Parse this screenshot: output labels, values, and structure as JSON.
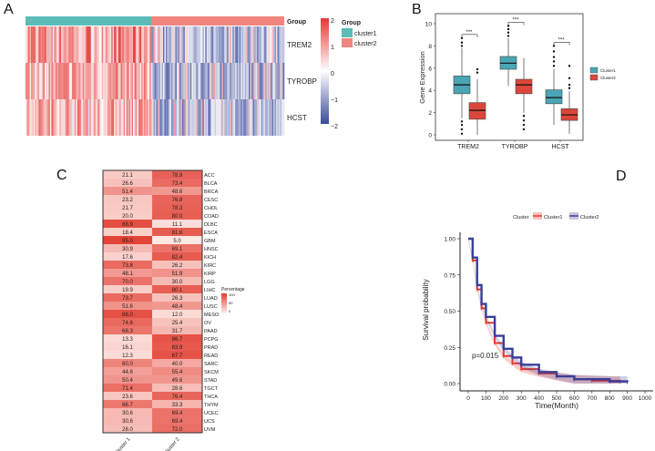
{
  "panel_labels": [
    "A",
    "B",
    "C",
    "D"
  ],
  "chart_data": [
    {
      "panel": "A",
      "type": "heatmap",
      "rows": [
        "TREM2",
        "TYROBP",
        "HCST"
      ],
      "annotation_title": "Group",
      "groups": [
        {
          "name": "cluster1",
          "color": "#5bbcb8"
        },
        {
          "name": "cluster2",
          "color": "#f08580"
        }
      ],
      "scale_ticks": [
        "2",
        "1",
        "0",
        "−1",
        "−2"
      ],
      "scale_range": [
        -2,
        2
      ],
      "colors": {
        "high": "#e53935",
        "mid": "#ffffff",
        "low": "#3a4a9a"
      }
    },
    {
      "panel": "B",
      "type": "boxplot",
      "ylabel": "Gene Expression",
      "ylim": [
        0,
        10
      ],
      "yticks": [
        "0",
        "2",
        "4",
        "6",
        "8",
        "10"
      ],
      "categories": [
        "TREM2",
        "TYROBP",
        "HCST"
      ],
      "significance": [
        "***",
        "***",
        "***"
      ],
      "legend": [
        {
          "name": "Cluster1",
          "color": "#4aa5b5"
        },
        {
          "name": "Cluster2",
          "color": "#d9473a"
        }
      ],
      "series": [
        {
          "name": "Cluster1",
          "boxes": [
            {
              "min": 1.5,
              "q1": 3.7,
              "median": 4.5,
              "q3": 5.3,
              "max": 7.8,
              "outliers": [
                0.1,
                0.5,
                0.9,
                1.2,
                8.0,
                8.3,
                8.7
              ]
            },
            {
              "min": 4.4,
              "q1": 5.9,
              "median": 6.45,
              "q3": 7.05,
              "max": 8.7,
              "outliers": [
                8.9,
                9.2,
                9.5,
                9.8
              ]
            },
            {
              "min": 0.9,
              "q1": 2.8,
              "median": 3.35,
              "q3": 4.05,
              "max": 5.9,
              "outliers": [
                6.2,
                6.6,
                7.0,
                7.5,
                8.0
              ]
            }
          ]
        },
        {
          "name": "Cluster2",
          "boxes": [
            {
              "min": 0.0,
              "q1": 1.4,
              "median": 2.2,
              "q3": 2.9,
              "max": 5.0,
              "outliers": [
                5.6,
                5.9
              ]
            },
            {
              "min": 2.0,
              "q1": 3.7,
              "median": 4.5,
              "q3": 5.0,
              "max": 6.9,
              "outliers": [
                0.5,
                0.9,
                1.3,
                1.7
              ]
            },
            {
              "min": 0.1,
              "q1": 1.3,
              "median": 1.8,
              "q3": 2.35,
              "max": 3.9,
              "outliers": [
                4.2,
                4.5,
                5.1,
                6.2
              ]
            }
          ]
        }
      ]
    },
    {
      "panel": "C",
      "type": "heatmap",
      "columns": [
        "Cluster 1",
        "Cluster 2"
      ],
      "legend_title": "Percentage",
      "legend_ticks": [
        "100",
        "50",
        "0"
      ],
      "rows": [
        {
          "label": "ACC",
          "values": [
            "21.1",
            "78.9"
          ]
        },
        {
          "label": "BLCA",
          "values": [
            "26.6",
            "73.4"
          ]
        },
        {
          "label": "BRCA",
          "values": [
            "51.4",
            "48.6"
          ]
        },
        {
          "label": "CESC",
          "values": [
            "23.2",
            "76.8"
          ]
        },
        {
          "label": "CHOL",
          "values": [
            "21.7",
            "78.3"
          ]
        },
        {
          "label": "COAD",
          "values": [
            "20.0",
            "80.0"
          ]
        },
        {
          "label": "DLBC",
          "values": [
            "88.9",
            "11.1"
          ]
        },
        {
          "label": "ESCA",
          "values": [
            "18.4",
            "81.6"
          ]
        },
        {
          "label": "GBM",
          "values": [
            "95.0",
            "5.0"
          ]
        },
        {
          "label": "HNSC",
          "values": [
            "30.9",
            "69.1"
          ]
        },
        {
          "label": "KICH",
          "values": [
            "17.6",
            "82.4"
          ]
        },
        {
          "label": "KIRC",
          "values": [
            "73.8",
            "26.2"
          ]
        },
        {
          "label": "KIRP",
          "values": [
            "48.1",
            "51.9"
          ]
        },
        {
          "label": "LGG",
          "values": [
            "70.0",
            "30.0"
          ]
        },
        {
          "label": "LIHC",
          "values": [
            "19.9",
            "80.1"
          ]
        },
        {
          "label": "LUAD",
          "values": [
            "73.7",
            "26.3"
          ]
        },
        {
          "label": "LUSC",
          "values": [
            "51.6",
            "48.4"
          ]
        },
        {
          "label": "MESO",
          "values": [
            "88.0",
            "12.0"
          ]
        },
        {
          "label": "OV",
          "values": [
            "74.6",
            "25.4"
          ]
        },
        {
          "label": "PAAD",
          "values": [
            "68.3",
            "31.7"
          ]
        },
        {
          "label": "PCPG",
          "values": [
            "13.3",
            "86.7"
          ]
        },
        {
          "label": "PRAD",
          "values": [
            "16.1",
            "83.9"
          ]
        },
        {
          "label": "READ",
          "values": [
            "12.3",
            "87.7"
          ]
        },
        {
          "label": "SARC",
          "values": [
            "60.0",
            "40.0"
          ]
        },
        {
          "label": "SKCM",
          "values": [
            "44.6",
            "55.4"
          ]
        },
        {
          "label": "STAD",
          "values": [
            "50.4",
            "49.6"
          ]
        },
        {
          "label": "TGCT",
          "values": [
            "71.4",
            "28.6"
          ]
        },
        {
          "label": "THCA",
          "values": [
            "23.6",
            "76.4"
          ]
        },
        {
          "label": "THYM",
          "values": [
            "66.7",
            "33.3"
          ]
        },
        {
          "label": "UCEC",
          "values": [
            "30.6",
            "69.4"
          ]
        },
        {
          "label": "UCS",
          "values": [
            "30.6",
            "69.4"
          ]
        },
        {
          "label": "UVM",
          "values": [
            "28.0",
            "72.0"
          ]
        }
      ]
    },
    {
      "panel": "D",
      "type": "line",
      "xlabel": "Time(Month)",
      "ylabel": "Survival probability",
      "xlim": [
        0,
        1000
      ],
      "ylim": [
        0,
        1
      ],
      "xticks": [
        "0",
        "100",
        "200",
        "300",
        "400",
        "500",
        "600",
        "700",
        "800",
        "900",
        "1000"
      ],
      "yticks": [
        "0.00",
        "0.25",
        "0.50",
        "0.75",
        "1.00"
      ],
      "legend_title": "Cluster",
      "annotation": "p=0.015",
      "series": [
        {
          "name": "Cluster1",
          "color": "#e8392d",
          "x": [
            0,
            25,
            50,
            75,
            100,
            150,
            200,
            250,
            300,
            400,
            500,
            600,
            700,
            860
          ],
          "y": [
            1.0,
            0.85,
            0.65,
            0.52,
            0.42,
            0.28,
            0.19,
            0.14,
            0.1,
            0.07,
            0.05,
            0.03,
            0.02,
            0.01
          ]
        },
        {
          "name": "Cluster2",
          "color": "#3a3f98",
          "x": [
            0,
            25,
            50,
            75,
            100,
            150,
            200,
            250,
            300,
            400,
            500,
            600,
            800,
            900
          ],
          "y": [
            1.0,
            0.87,
            0.68,
            0.55,
            0.46,
            0.33,
            0.24,
            0.18,
            0.13,
            0.08,
            0.05,
            0.03,
            0.015,
            0.01
          ]
        }
      ]
    }
  ]
}
